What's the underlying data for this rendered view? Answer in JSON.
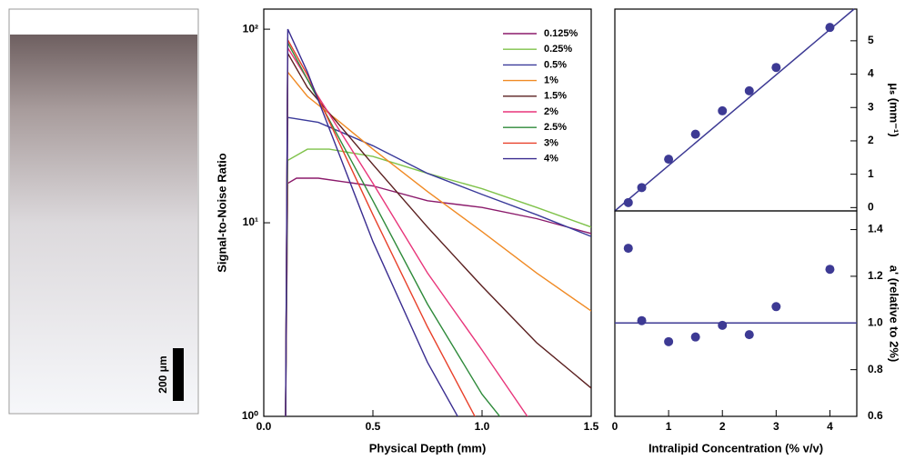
{
  "image": {
    "scale_bar_label": "200 μm"
  },
  "chart_data": [
    {
      "type": "line",
      "ylog": true,
      "legend": "upper right",
      "xlabel": "Physical Depth (mm)",
      "ylabel": "Signal-to-Noise Ratio",
      "xlim": [
        0,
        1.5
      ],
      "ylim": [
        1,
        127
      ],
      "xticks": [
        {
          "value": 0,
          "label": "0.0"
        },
        0.5,
        {
          "value": 1,
          "label": "1.0"
        },
        1.5
      ],
      "yticks": [
        {
          "value": 1,
          "label": "10⁰"
        },
        {
          "value": 10,
          "label": "10¹"
        },
        {
          "value": 100,
          "label": "10²"
        }
      ],
      "series": [
        {
          "name": "0.125%",
          "color": "#8b1a6b",
          "x": [
            0.1,
            0.11,
            0.15,
            0.25,
            0.5,
            0.75,
            1.0,
            1.25,
            1.5
          ],
          "values": [
            1,
            16,
            17,
            17,
            15.5,
            13,
            12,
            10.5,
            8.8
          ]
        },
        {
          "name": "0.25%",
          "color": "#7fc24a",
          "x": [
            0.1,
            0.11,
            0.2,
            0.3,
            0.5,
            0.75,
            1.0,
            1.25,
            1.5
          ],
          "values": [
            1,
            21,
            24,
            24,
            22,
            18,
            15,
            12,
            9.5
          ]
        },
        {
          "name": "0.5%",
          "color": "#3a3a9a",
          "x": [
            0.1,
            0.11,
            0.25,
            0.5,
            0.75,
            1.0,
            1.25,
            1.5
          ],
          "values": [
            1,
            35,
            33,
            25,
            18,
            14,
            11,
            8.5
          ]
        },
        {
          "name": "1%",
          "color": "#f08a24",
          "x": [
            0.1,
            0.11,
            0.2,
            0.35,
            0.5,
            0.75,
            1.0,
            1.25,
            1.5
          ],
          "values": [
            1,
            60,
            45,
            33,
            24,
            14.5,
            9,
            5.5,
            3.5
          ]
        },
        {
          "name": "1.5%",
          "color": "#5a1f1f",
          "x": [
            0.1,
            0.11,
            0.2,
            0.5,
            0.75,
            1.0,
            1.25,
            1.5
          ],
          "values": [
            1,
            75,
            50,
            20,
            9.5,
            4.7,
            2.4,
            1.4
          ]
        },
        {
          "name": "2%",
          "color": "#e8357a",
          "x": [
            0.1,
            0.11,
            0.2,
            0.5,
            0.75,
            1.0,
            1.25
          ],
          "values": [
            1,
            80,
            55,
            16,
            5.5,
            2.2,
            0.85
          ]
        },
        {
          "name": "2.5%",
          "color": "#2e8a3a",
          "x": [
            0.1,
            0.11,
            0.2,
            0.5,
            0.75,
            1.0,
            1.15
          ],
          "values": [
            1,
            85,
            55,
            13,
            3.8,
            1.3,
            0.8
          ]
        },
        {
          "name": "3%",
          "color": "#e8402a",
          "x": [
            0.1,
            0.11,
            0.2,
            0.5,
            0.75,
            1.0
          ],
          "values": [
            1,
            88,
            58,
            11,
            2.9,
            0.85
          ]
        },
        {
          "name": "4%",
          "color": "#3a2d90",
          "x": [
            0.1,
            0.11,
            0.2,
            0.5,
            0.75,
            0.95
          ],
          "values": [
            1,
            100,
            60,
            8,
            1.9,
            0.75
          ]
        }
      ]
    },
    {
      "type": "scatter",
      "ylabel": "μₛ (mm⁻¹)",
      "xlim": [
        0,
        4.5
      ],
      "ylim": [
        -0.1,
        5.95
      ],
      "yticks": [
        0,
        1,
        2,
        3,
        4,
        5
      ],
      "points": {
        "color": "#3d3a94",
        "x": [
          0.25,
          0.5,
          1,
          1.5,
          2,
          2.5,
          3,
          4
        ],
        "values": [
          0.15,
          0.6,
          1.45,
          2.2,
          2.9,
          3.5,
          4.2,
          5.4
        ]
      },
      "fit": {
        "color": "#3d3a94",
        "x": [
          0,
          4.45
        ],
        "values": [
          -0.1,
          5.95
        ]
      }
    },
    {
      "type": "scatter",
      "ylabel": "a' (relative to 2%)",
      "xlabel": "Intralipid Concentration (% v/v)",
      "xlim": [
        0,
        4.5
      ],
      "ylim": [
        0.6,
        1.48
      ],
      "xticks": [
        0,
        1,
        2,
        3,
        4
      ],
      "yticks": [
        {
          "value": 0.6,
          "label": "0.6"
        },
        {
          "value": 0.8,
          "label": "0.8"
        },
        {
          "value": 1,
          "label": "1.0"
        },
        {
          "value": 1.2,
          "label": "1.2"
        },
        {
          "value": 1.4,
          "label": "1.4"
        }
      ],
      "points": {
        "color": "#3d3a94",
        "x": [
          0.25,
          0.5,
          1,
          1.5,
          2,
          2.5,
          3,
          4
        ],
        "values": [
          1.32,
          1.01,
          0.92,
          0.94,
          0.99,
          0.95,
          1.07,
          1.23
        ]
      },
      "fit": {
        "color": "#3d3a94",
        "x": [
          0,
          4.5
        ],
        "values": [
          1,
          1
        ]
      }
    }
  ]
}
